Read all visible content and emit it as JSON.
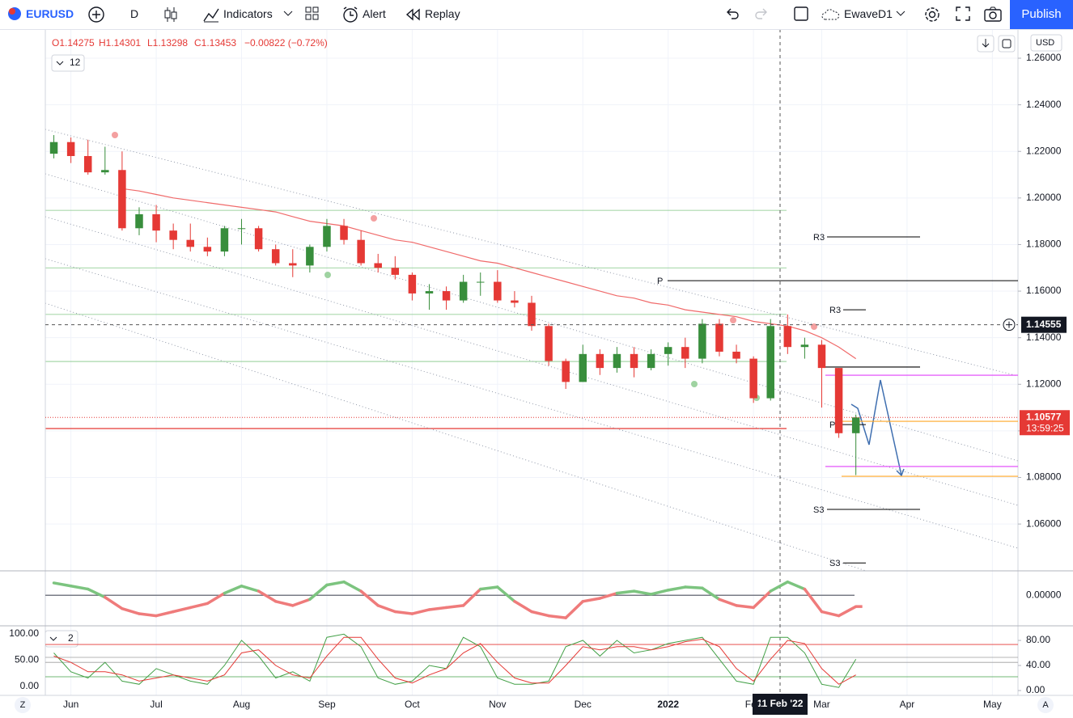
{
  "toolbar": {
    "symbol": "EURUSD",
    "interval": "D",
    "indicators": "Indicators",
    "alert": "Alert",
    "replay": "Replay",
    "layout": "EwaveD1",
    "publish": "Publish"
  },
  "legend": {
    "open": "O1.14275",
    "high": "H1.14301",
    "low": "L1.13298",
    "close": "C1.13453",
    "change": "−0.00822 (−0.72%)",
    "badge": "12"
  },
  "currency": "USD",
  "corners": {
    "left": "Z",
    "right": "A"
  },
  "chart_data": [
    {
      "type": "candlestick",
      "categories": [
        null,
        "Jun",
        null,
        null,
        null,
        null,
        "Jul",
        null,
        null,
        null,
        null,
        "Aug",
        null,
        null,
        null,
        null,
        "Sep",
        null,
        null,
        null,
        null,
        "Oct",
        null,
        null,
        null,
        null,
        "Nov",
        null,
        null,
        null,
        null,
        "Dec",
        null,
        null,
        null,
        null,
        "2022",
        null,
        null,
        null,
        null,
        "Feb",
        null,
        null,
        null,
        "Mar",
        null,
        null,
        null,
        null,
        "Apr",
        null,
        null,
        null,
        null,
        "May",
        null
      ],
      "open": [
        1.219,
        1.224,
        1.218,
        1.211,
        1.212,
        1.187,
        1.193,
        1.186,
        1.182,
        1.179,
        1.177,
        1.187,
        1.187,
        1.178,
        1.172,
        1.171,
        1.179,
        1.188,
        1.182,
        1.172,
        1.17,
        1.167,
        1.159,
        1.16,
        1.156,
        1.164,
        1.164,
        1.156,
        1.155,
        1.145,
        1.13,
        1.121,
        1.133,
        1.127,
        1.133,
        1.127,
        1.133,
        1.136,
        1.131,
        1.146,
        1.134,
        1.131,
        1.114,
        1.145,
        1.136,
        1.137,
        1.127,
        1.099,
        null,
        null,
        null,
        null,
        null,
        null,
        null,
        null,
        null
      ],
      "high": [
        1.227,
        1.226,
        1.225,
        1.222,
        1.22,
        1.196,
        1.197,
        1.189,
        1.189,
        1.183,
        1.188,
        1.191,
        1.188,
        1.18,
        1.178,
        1.18,
        1.191,
        1.191,
        1.186,
        1.176,
        1.175,
        1.168,
        1.163,
        1.162,
        1.167,
        1.168,
        1.169,
        1.16,
        1.158,
        1.146,
        1.131,
        1.137,
        1.135,
        1.136,
        1.136,
        1.135,
        1.138,
        1.14,
        1.148,
        1.148,
        1.137,
        1.132,
        1.148,
        1.15,
        1.14,
        1.139,
        1.127,
        1.107,
        null,
        null,
        null,
        null,
        null,
        null,
        null,
        null,
        null
      ],
      "low": [
        1.217,
        1.215,
        1.21,
        1.21,
        1.186,
        1.184,
        1.181,
        1.178,
        1.177,
        1.175,
        1.175,
        1.18,
        1.177,
        1.171,
        1.166,
        1.168,
        1.177,
        1.18,
        1.171,
        1.168,
        1.165,
        1.156,
        1.152,
        1.152,
        1.155,
        1.158,
        1.155,
        1.153,
        1.143,
        1.128,
        1.118,
        1.121,
        1.124,
        1.125,
        1.123,
        1.126,
        1.128,
        1.127,
        1.129,
        1.132,
        1.129,
        1.112,
        1.113,
        1.133,
        1.131,
        1.11,
        1.097,
        1.081,
        null,
        null,
        null,
        null,
        null,
        null,
        null,
        null,
        null
      ],
      "close": [
        1.224,
        1.218,
        1.211,
        1.212,
        1.187,
        1.193,
        1.186,
        1.182,
        1.179,
        1.177,
        1.187,
        1.187,
        1.178,
        1.172,
        1.171,
        1.179,
        1.188,
        1.182,
        1.172,
        1.17,
        1.167,
        1.159,
        1.16,
        1.156,
        1.164,
        1.164,
        1.156,
        1.155,
        1.145,
        1.13,
        1.121,
        1.133,
        1.127,
        1.133,
        1.127,
        1.133,
        1.136,
        1.131,
        1.146,
        1.134,
        1.131,
        1.114,
        1.145,
        1.136,
        1.137,
        1.127,
        1.099,
        1.10577,
        null,
        null,
        null,
        null,
        null,
        null,
        null,
        null,
        null
      ],
      "up_color": "#388e3c",
      "down_color": "#e53935",
      "ma": [
        null,
        null,
        null,
        null,
        1.204,
        1.203,
        1.2015,
        1.2,
        1.199,
        1.198,
        1.197,
        1.196,
        1.195,
        1.194,
        1.192,
        1.19,
        1.189,
        1.188,
        1.186,
        1.184,
        1.182,
        1.181,
        1.179,
        1.177,
        1.175,
        1.173,
        1.172,
        1.17,
        1.168,
        1.166,
        1.164,
        1.162,
        1.16,
        1.158,
        1.157,
        1.155,
        1.154,
        1.152,
        1.151,
        1.15,
        1.149,
        1.147,
        1.146,
        1.145,
        1.143,
        1.14,
        1.136,
        1.131,
        null,
        null,
        null,
        null,
        null,
        null,
        null,
        null,
        null
      ],
      "ma_color": "#f06a6a",
      "ylim": [
        1.0399,
        1.2725
      ],
      "yticks": [
        {
          "value": 1.26,
          "label": "1.26000"
        },
        {
          "value": 1.24,
          "label": "1.24000"
        },
        {
          "value": 1.22,
          "label": "1.22000"
        },
        {
          "value": 1.2,
          "label": "1.20000"
        },
        {
          "value": 1.18,
          "label": "1.18000"
        },
        {
          "value": 1.16,
          "label": "1.16000"
        },
        {
          "value": 1.14,
          "label": "1.14000"
        },
        {
          "value": 1.12,
          "label": "1.12000"
        },
        {
          "value": 1.1,
          "label": "1.10000"
        },
        {
          "value": 1.08,
          "label": "1.08000"
        },
        {
          "value": 1.06,
          "label": "1.06000"
        }
      ],
      "grid": true,
      "levels": [
        {
          "value": 1.1947,
          "color": "#81c784"
        },
        {
          "value": 1.17,
          "color": "#81c784"
        },
        {
          "value": 1.15,
          "color": "#81c784"
        },
        {
          "value": 1.1298,
          "color": "#81c784"
        },
        {
          "value": 1.101,
          "color": "#e53935"
        }
      ],
      "lines": [
        {
          "value": 1.1274,
          "color": "#000000"
        },
        {
          "value": 1.1239,
          "color": "#e040fb"
        },
        {
          "value": 1.0847,
          "color": "#e040fb"
        },
        {
          "value": 1.1041,
          "color": "#ffa726"
        },
        {
          "value": 1.0805,
          "color": "#ffa726"
        }
      ],
      "pivots": [
        {
          "label": "R3",
          "value": 1.1833
        },
        {
          "label": "P",
          "value": 1.1645
        },
        {
          "label": "S3",
          "value": 1.0663
        },
        {
          "label": "R3",
          "value": 1.152
        },
        {
          "label": "P",
          "value": 1.1027
        },
        {
          "label": "S3",
          "value": 1.0433
        }
      ],
      "crosshair_price": 1.14555,
      "crosshair_date": "11 Feb '22",
      "last_price": 1.10577,
      "countdown": "13:59:25"
    },
    {
      "type": "line",
      "values": [
        0.012,
        0.009,
        0.006,
        -0.002,
        -0.013,
        -0.018,
        -0.02,
        -0.016,
        -0.012,
        -0.008,
        0.002,
        0.009,
        0.004,
        -0.006,
        -0.01,
        -0.004,
        0.01,
        0.013,
        0.004,
        -0.01,
        -0.016,
        -0.018,
        -0.014,
        -0.012,
        -0.01,
        0.006,
        0.008,
        -0.006,
        -0.016,
        -0.02,
        -0.022,
        -0.006,
        -0.003,
        0.002,
        0.004,
        0.001,
        0.005,
        0.008,
        0.007,
        -0.004,
        -0.01,
        -0.012,
        0.004,
        0.013,
        0.006,
        -0.016,
        -0.02,
        -0.011,
        null,
        null,
        null,
        null,
        null,
        null,
        null,
        null,
        null
      ],
      "up_color": "#7cc47f",
      "down_color": "#ef7b7b",
      "ylim": [
        -0.029,
        0.023
      ],
      "yticks": [
        {
          "value": 0,
          "label": "0.00000"
        }
      ]
    },
    {
      "type": "line",
      "badge": "2",
      "series": [
        {
          "color": "#43a047",
          "values": [
            60,
            30,
            20,
            45,
            15,
            10,
            35,
            25,
            15,
            10,
            40,
            80,
            55,
            20,
            30,
            15,
            85,
            90,
            70,
            20,
            10,
            15,
            40,
            35,
            85,
            70,
            20,
            10,
            10,
            15,
            70,
            80,
            55,
            80,
            60,
            65,
            75,
            80,
            85,
            50,
            15,
            10,
            85,
            85,
            60,
            10,
            5,
            50,
            null,
            null,
            null,
            null,
            null,
            null,
            null,
            null,
            null
          ],
          "axis": "y2"
        },
        {
          "color": "#e53935",
          "values": [
            55,
            45,
            30,
            30,
            25,
            15,
            20,
            25,
            20,
            15,
            25,
            60,
            65,
            40,
            25,
            20,
            55,
            85,
            85,
            50,
            20,
            12,
            25,
            35,
            60,
            75,
            45,
            20,
            12,
            12,
            40,
            70,
            65,
            70,
            70,
            65,
            70,
            78,
            82,
            70,
            35,
            15,
            50,
            80,
            75,
            35,
            10,
            25,
            null,
            null,
            null,
            null,
            null,
            null,
            null,
            null,
            null
          ],
          "axis": "y2"
        }
      ],
      "ylim": [
        -16.9,
        113.8
      ],
      "yticks": [
        {
          "value": 100,
          "label": "100.00"
        },
        {
          "value": 50,
          "label": "50.00"
        },
        {
          "value": 0,
          "label": "0.00"
        }
      ],
      "y2lim": [
        -7.7,
        102
      ],
      "y2ticks": [
        {
          "value": 80,
          "label": "80.00"
        },
        {
          "value": 40,
          "label": "40.00"
        },
        {
          "value": 0,
          "label": "0.00"
        }
      ],
      "levels": [
        {
          "value": 73.5,
          "color": "#e53935"
        },
        {
          "value": 53,
          "color": "#9e9e9e"
        },
        {
          "value": 45,
          "color": "#9e9e9e"
        },
        {
          "value": 22,
          "color": "#43a047"
        }
      ]
    }
  ]
}
